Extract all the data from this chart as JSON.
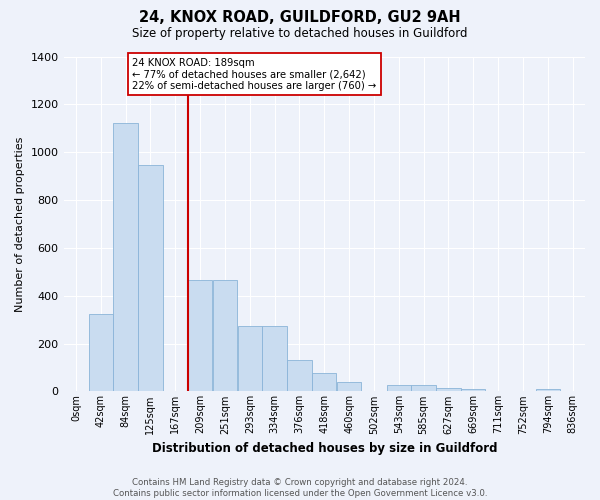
{
  "title": "24, KNOX ROAD, GUILDFORD, GU2 9AH",
  "subtitle": "Size of property relative to detached houses in Guildford",
  "xlabel": "Distribution of detached houses by size in Guildford",
  "ylabel": "Number of detached properties",
  "bar_color": "#c9dcf0",
  "bar_edge_color": "#8ab4d8",
  "background_color": "#eef2fa",
  "grid_color": "#ffffff",
  "vline_x": 4,
  "vline_color": "#cc0000",
  "annotation_text": "24 KNOX ROAD: 189sqm\n← 77% of detached houses are smaller (2,642)\n22% of semi-detached houses are larger (760) →",
  "annotation_box_color": "#ffffff",
  "annotation_box_edge": "#cc0000",
  "bin_labels": [
    "0sqm",
    "42sqm",
    "84sqm",
    "125sqm",
    "167sqm",
    "209sqm",
    "251sqm",
    "293sqm",
    "334sqm",
    "376sqm",
    "418sqm",
    "460sqm",
    "502sqm",
    "543sqm",
    "585sqm",
    "627sqm",
    "669sqm",
    "711sqm",
    "752sqm",
    "794sqm",
    "836sqm"
  ],
  "counts": [
    0,
    325,
    1120,
    945,
    0,
    465,
    465,
    275,
    275,
    130,
    75,
    40,
    0,
    25,
    25,
    15,
    10,
    0,
    0,
    10,
    0
  ],
  "ylim": [
    0,
    1400
  ],
  "yticks": [
    0,
    200,
    400,
    600,
    800,
    1000,
    1200,
    1400
  ],
  "footnote": "Contains HM Land Registry data © Crown copyright and database right 2024.\nContains public sector information licensed under the Open Government Licence v3.0."
}
